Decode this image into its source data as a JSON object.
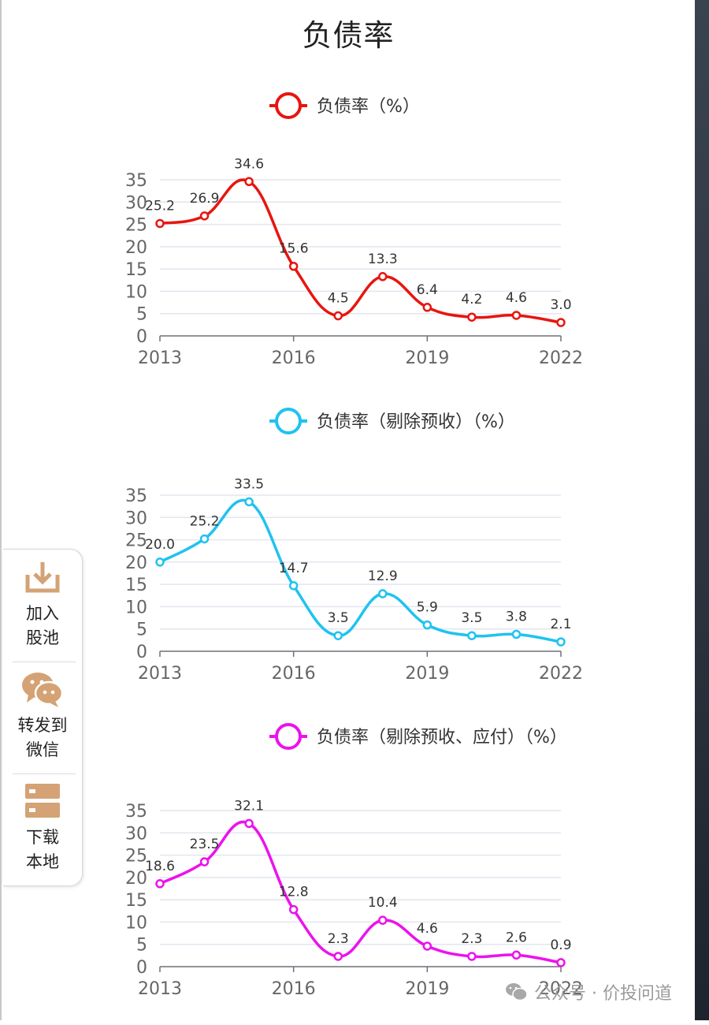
{
  "page": {
    "title": "负债率"
  },
  "toolbar": {
    "add_pool": "加入\n股池",
    "forward_wechat": "转发到\n微信",
    "download": "下载\n本地"
  },
  "watermark": {
    "text": "公众号 · 价投问道"
  },
  "chart_data": [
    {
      "type": "line",
      "title": "负债率（%）",
      "color": "#e8150f",
      "x": [
        2013,
        2014,
        2015,
        2016,
        2017,
        2018,
        2019,
        2020,
        2021,
        2022
      ],
      "x_ticks": [
        2013,
        2016,
        2019,
        2022
      ],
      "values": [
        25.2,
        26.9,
        34.6,
        15.6,
        4.5,
        13.3,
        6.4,
        4.2,
        4.6,
        3.0
      ],
      "labels": [
        "25.2",
        "26.9",
        "34.6",
        "15.6",
        "4.5",
        "13.3",
        "6.4",
        "4.2",
        "4.6",
        "3.0"
      ],
      "ylim": [
        0,
        35
      ],
      "y_ticks": [
        0,
        5,
        10,
        15,
        20,
        25,
        30,
        35
      ],
      "grid": true,
      "legend": "top-center"
    },
    {
      "type": "line",
      "title": "负债率（剔除预收）（%）",
      "color": "#1fc3ef",
      "x": [
        2013,
        2014,
        2015,
        2016,
        2017,
        2018,
        2019,
        2020,
        2021,
        2022
      ],
      "x_ticks": [
        2013,
        2016,
        2019,
        2022
      ],
      "values": [
        20.0,
        25.2,
        33.5,
        14.7,
        3.5,
        12.9,
        5.9,
        3.5,
        3.8,
        2.1
      ],
      "labels": [
        "20.0",
        "25.2",
        "33.5",
        "14.7",
        "3.5",
        "12.9",
        "5.9",
        "3.5",
        "3.8",
        "2.1"
      ],
      "ylim": [
        0,
        35
      ],
      "y_ticks": [
        0,
        5,
        10,
        15,
        20,
        25,
        30,
        35
      ],
      "grid": true,
      "legend": "top-center"
    },
    {
      "type": "line",
      "title": "负债率（剔除预收、应付）（%）",
      "color": "#ec12ec",
      "x": [
        2013,
        2014,
        2015,
        2016,
        2017,
        2018,
        2019,
        2020,
        2021,
        2022
      ],
      "x_ticks": [
        2013,
        2016,
        2019,
        2022
      ],
      "values": [
        18.6,
        23.5,
        32.1,
        12.8,
        2.3,
        10.4,
        4.6,
        2.3,
        2.6,
        0.9
      ],
      "labels": [
        "18.6",
        "23.5",
        "32.1",
        "12.8",
        "2.3",
        "10.4",
        "4.6",
        "2.3",
        "2.6",
        "0.9"
      ],
      "ylim": [
        0,
        35
      ],
      "y_ticks": [
        0,
        5,
        10,
        15,
        20,
        25,
        30,
        35
      ],
      "grid": true,
      "legend": "top-center"
    }
  ]
}
